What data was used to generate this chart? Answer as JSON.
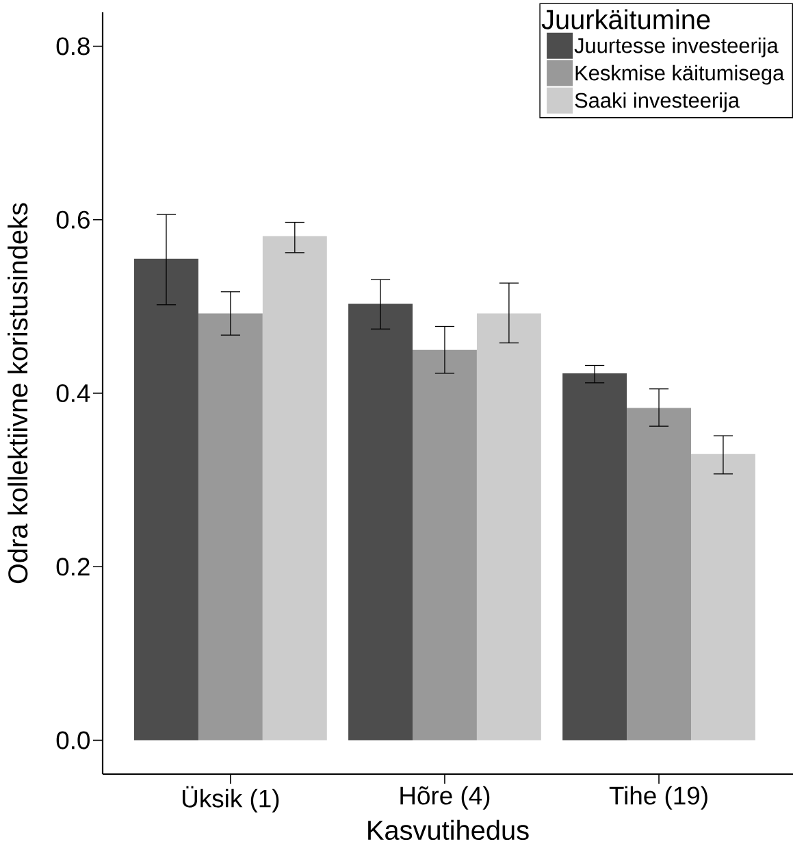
{
  "chart_data": {
    "type": "bar",
    "xlabel": "Kasvutihedus",
    "ylabel": "Odra kollektiivne koristusindeks",
    "legend_title": "Juurkäitumine",
    "categories": [
      "Üksik (1)",
      "Hõre (4)",
      "Tihe (19)"
    ],
    "series": [
      {
        "name": "Juurtesse investeerija",
        "color": "#4d4d4d",
        "values": [
          0.555,
          0.503,
          0.423
        ],
        "errors": [
          [
            0.502,
            0.606
          ],
          [
            0.474,
            0.531
          ],
          [
            0.412,
            0.432
          ]
        ]
      },
      {
        "name": "Keskmise käitumisega",
        "color": "#999999",
        "values": [
          0.492,
          0.45,
          0.383
        ],
        "errors": [
          [
            0.467,
            0.517
          ],
          [
            0.423,
            0.477
          ],
          [
            0.362,
            0.405
          ]
        ]
      },
      {
        "name": "Saaki investeerija",
        "color": "#cccccc",
        "values": [
          0.581,
          0.492,
          0.33
        ],
        "errors": [
          [
            0.562,
            0.597
          ],
          [
            0.458,
            0.527
          ],
          [
            0.307,
            0.351
          ]
        ]
      }
    ],
    "ylim": [
      -0.039,
      0.839
    ],
    "yticks": [
      {
        "value": 0,
        "label": "0.0"
      },
      0.2,
      0.4,
      0.6,
      0.8
    ],
    "legend": "top right",
    "grid": false
  }
}
